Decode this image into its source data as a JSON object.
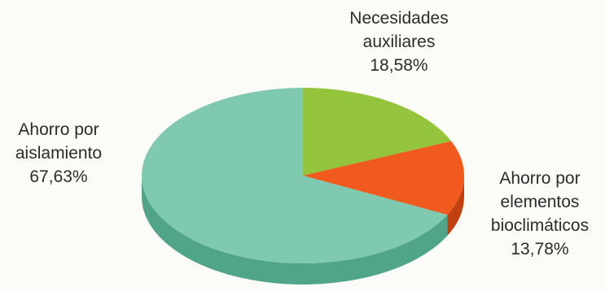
{
  "chart_data": {
    "type": "pie",
    "style": "3d",
    "slices": [
      {
        "label_lines": [
          "Necesidades",
          "auxiliares"
        ],
        "value_label": "18,58%",
        "value": 18.58,
        "color": "#94c43c",
        "side_color": "#6f9a2a"
      },
      {
        "label_lines": [
          "Ahorro por",
          "elementos",
          "bioclimáticos"
        ],
        "value_label": "13,78%",
        "value": 13.78,
        "color": "#f05a1e",
        "side_color": "#c0400f"
      },
      {
        "label_lines": [
          "Ahorro por",
          "aislamiento"
        ],
        "value_label": "67,63%",
        "value": 67.63,
        "color": "#7fc9b0",
        "side_color": "#4fa48a"
      }
    ]
  }
}
